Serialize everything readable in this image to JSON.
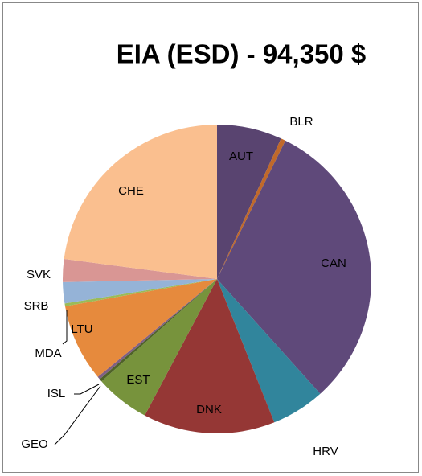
{
  "chart_data": {
    "type": "pie",
    "title": "EIA (ESD) - 94,350 $",
    "categories": [
      "AUT",
      "BLR",
      "CAN",
      "HRV",
      "DNK",
      "EST",
      "GEO",
      "ISL",
      "LTU",
      "MDA",
      "SRB",
      "SVK",
      "CHE"
    ],
    "values": [
      6.8,
      0.5,
      31,
      5.6,
      13.8,
      5.7,
      0.3,
      0.3,
      8.1,
      0.3,
      2.2,
      2.4,
      22.9
    ],
    "colors": [
      "#594470",
      "#c0692a",
      "#5f497a",
      "#31859c",
      "#953735",
      "#77933c",
      "#4f6228",
      "#7f6084",
      "#e68a3d",
      "#9bbb59",
      "#95b3d7",
      "#d99694",
      "#fabf8f"
    ]
  }
}
